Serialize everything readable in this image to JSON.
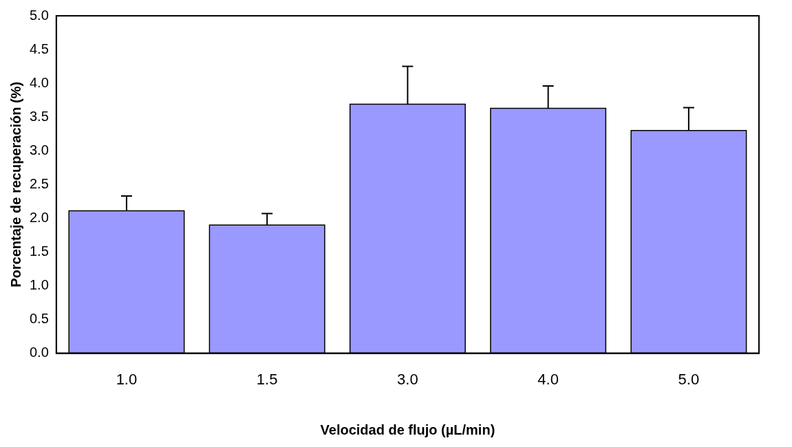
{
  "chart_data": {
    "type": "bar",
    "xlabel": "Velocidad de flujo (µL/min)",
    "ylabel": "Porcentaje de recuperación (%)",
    "categories": [
      "1.0",
      "1.5",
      "3.0",
      "4.0",
      "5.0"
    ],
    "values": [
      2.11,
      1.9,
      3.69,
      3.63,
      3.3
    ],
    "errors": [
      [
        2.11,
        2.33
      ],
      [
        1.9,
        2.07
      ],
      [
        3.69,
        4.25
      ],
      [
        3.63,
        3.96
      ],
      [
        3.3,
        3.64
      ]
    ],
    "color": "#9999ff",
    "ylim": [
      0,
      5
    ],
    "yticks": [
      {
        "value": 0,
        "label": "0.0"
      },
      0.5,
      {
        "value": 1,
        "label": "1.0"
      },
      1.5,
      {
        "value": 2,
        "label": "2.0"
      },
      2.5,
      {
        "value": 3,
        "label": "3.0"
      },
      3.5,
      {
        "value": 4,
        "label": "4.0"
      },
      4.5,
      {
        "value": 5,
        "label": "5.0"
      }
    ],
    "grid": false,
    "legend": false
  }
}
